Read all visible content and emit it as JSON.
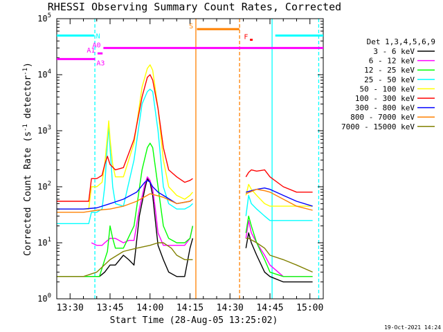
{
  "chart_data": {
    "type": "line",
    "title": "RHESSI Observing Summary Count Rates, Corrected",
    "xlabel": "Start Time (28-Aug-05 13:25:02)",
    "ylabel": "Corrected Count Rate (s",
    "ylabel_sup": "-1",
    "ylabel_tail": " detector",
    "ylabel_end": ")",
    "footer": "19-Oct-2021 14:24",
    "yscale": "log",
    "ylim": [
      1,
      100000
    ],
    "xlim_minutes": [
      0,
      100
    ],
    "x_unit": "minutes after 13:25:02",
    "x_ticks": [
      {
        "label": "13:30",
        "min": 5
      },
      {
        "label": "13:45",
        "min": 20
      },
      {
        "label": "14:00",
        "min": 35
      },
      {
        "label": "14:15",
        "min": 50
      },
      {
        "label": "14:30",
        "min": 65
      },
      {
        "label": "14:45",
        "min": 80
      },
      {
        "label": "15:00",
        "min": 95
      }
    ],
    "y_ticks": [
      {
        "base": "10",
        "exp": "0",
        "value": 1
      },
      {
        "base": "10",
        "exp": "1",
        "value": 10
      },
      {
        "base": "10",
        "exp": "2",
        "value": 100
      },
      {
        "base": "10",
        "exp": "3",
        "value": 1000
      },
      {
        "base": "10",
        "exp": "4",
        "value": 10000
      },
      {
        "base": "10",
        "exp": "5",
        "value": 100000
      }
    ],
    "legend_title": "Det 1,3,4,5,6,9",
    "legend_placement": "right",
    "series": [
      {
        "name": "3 - 6 keV",
        "color": "#000000",
        "x": [
          0,
          16,
          18,
          20,
          22,
          25,
          27,
          29,
          31,
          33,
          34,
          35,
          36,
          37,
          38,
          40,
          42,
          45,
          48,
          50,
          51,
          53.5,
          58,
          62,
          64,
          70,
          71,
          72,
          73,
          75,
          78,
          80,
          85,
          90,
          96
        ],
        "y": [
          2.5,
          2.5,
          3,
          4,
          4,
          6,
          5,
          4,
          30,
          90,
          140,
          120,
          70,
          25,
          9,
          5,
          3,
          2.5,
          2.5,
          8,
          12,
          null,
          null,
          null,
          null,
          null,
          8,
          15,
          10,
          6,
          3,
          2.5,
          2,
          2,
          2
        ]
      },
      {
        "name": "6 - 12 keV",
        "color": "#ff00ff",
        "x": [
          0,
          12,
          13,
          15,
          17,
          18,
          20,
          22,
          25,
          27,
          29,
          31,
          33,
          34,
          35,
          36,
          37,
          38,
          40,
          42,
          45,
          48,
          50,
          51,
          53.5,
          58,
          62,
          64,
          70,
          71,
          72,
          73,
          75,
          78,
          80,
          85,
          90,
          96
        ],
        "y": [
          null,
          null,
          10,
          9,
          9,
          10,
          12,
          12,
          10,
          11,
          11,
          40,
          110,
          150,
          130,
          90,
          40,
          15,
          9,
          9,
          9,
          9,
          12,
          20,
          null,
          null,
          null,
          null,
          null,
          12,
          25,
          15,
          10,
          6,
          4,
          2.5,
          2.5,
          2.5
        ]
      },
      {
        "name": "12 - 25 keV",
        "color": "#00ff00",
        "x": [
          0,
          16,
          18,
          19,
          20,
          21,
          22,
          25,
          29,
          32,
          34,
          35,
          36,
          38,
          40,
          42,
          45,
          48,
          50,
          51,
          53.5,
          58,
          62,
          64,
          70,
          71,
          72,
          73,
          75,
          78,
          80,
          85,
          90,
          96
        ],
        "y": [
          2.5,
          2.5,
          5,
          7,
          20,
          12,
          8,
          8,
          20,
          200,
          500,
          600,
          500,
          100,
          20,
          12,
          10,
          10,
          12,
          20,
          null,
          null,
          null,
          null,
          null,
          15,
          30,
          20,
          10,
          5,
          3,
          2.5,
          2.5,
          2.5
        ]
      },
      {
        "name": "25 - 50 keV",
        "color": "#00ffff",
        "x": [
          0,
          12,
          13,
          15,
          17,
          18,
          19,
          19.5,
          20,
          21,
          22,
          25,
          29,
          32,
          34,
          35,
          36,
          38,
          40,
          42,
          45,
          48,
          50,
          51,
          53.5,
          58,
          62,
          64,
          70,
          71,
          72,
          73,
          75,
          78,
          80,
          85,
          90,
          96
        ],
        "y": [
          22,
          22,
          35,
          35,
          40,
          100,
          600,
          1200,
          500,
          100,
          50,
          45,
          300,
          3000,
          5000,
          5500,
          5000,
          1000,
          100,
          50,
          40,
          40,
          45,
          50,
          null,
          null,
          null,
          null,
          null,
          30,
          70,
          50,
          40,
          30,
          25,
          25,
          25,
          25
        ]
      },
      {
        "name": "50 - 100 keV",
        "color": "#ffff00",
        "x": [
          0,
          12,
          13,
          15,
          17,
          18,
          19,
          19.5,
          20,
          21,
          22,
          25,
          29,
          32,
          34,
          35,
          36,
          38,
          40,
          42,
          45,
          48,
          50,
          51,
          53.5,
          58,
          62,
          64,
          70,
          71,
          72,
          73,
          75,
          78,
          80,
          85,
          90,
          96
        ],
        "y": [
          40,
          40,
          100,
          100,
          120,
          250,
          800,
          1500,
          700,
          250,
          150,
          150,
          600,
          6000,
          13000,
          15000,
          12000,
          2500,
          300,
          100,
          70,
          60,
          70,
          80,
          null,
          null,
          null,
          null,
          null,
          70,
          110,
          90,
          70,
          50,
          45,
          45,
          45,
          45
        ]
      },
      {
        "name": "100 - 300 keV",
        "color": "#ff0000",
        "x": [
          0,
          12,
          13,
          15,
          17,
          18,
          19,
          20,
          22,
          25,
          29,
          32,
          34,
          35,
          36,
          38,
          40,
          42,
          45,
          48,
          50,
          51,
          53.5,
          58,
          62,
          64,
          70,
          71,
          72,
          73,
          75,
          78,
          80,
          85,
          90,
          96
        ],
        "y": [
          55,
          55,
          140,
          140,
          160,
          250,
          350,
          250,
          200,
          220,
          700,
          4000,
          9000,
          10000,
          8000,
          2500,
          500,
          200,
          150,
          120,
          130,
          140,
          null,
          null,
          null,
          null,
          null,
          150,
          180,
          200,
          190,
          200,
          150,
          100,
          80,
          80
        ]
      },
      {
        "name": "300 - 800 keV",
        "color": "#0000ff",
        "x": [
          0,
          10,
          15,
          20,
          25,
          30,
          33,
          34,
          35,
          36,
          38,
          40,
          45,
          50,
          51,
          53.5,
          58,
          62,
          64,
          70,
          71,
          75,
          78,
          80,
          85,
          90,
          96
        ],
        "y": [
          40,
          40,
          42,
          50,
          60,
          80,
          120,
          130,
          120,
          100,
          80,
          70,
          50,
          55,
          60,
          null,
          null,
          null,
          null,
          null,
          80,
          90,
          95,
          90,
          70,
          55,
          45
        ]
      },
      {
        "name": "800 - 7000 keV",
        "color": "#ff8000",
        "x": [
          0,
          10,
          15,
          20,
          25,
          30,
          35,
          40,
          45,
          50,
          51,
          53.5,
          58,
          62,
          64,
          70,
          71,
          75,
          78,
          80,
          85,
          90,
          96
        ],
        "y": [
          35,
          35,
          38,
          40,
          45,
          55,
          75,
          65,
          50,
          55,
          60,
          null,
          null,
          null,
          null,
          null,
          75,
          90,
          85,
          80,
          60,
          45,
          38
        ]
      },
      {
        "name": "7000 - 15000 keV",
        "color": "#808000",
        "x": [
          0,
          10,
          15,
          20,
          25,
          30,
          35,
          38,
          40,
          43,
          45,
          48,
          50,
          51,
          53.5,
          58,
          62,
          64,
          70,
          71,
          72,
          75,
          78,
          80,
          85,
          90,
          96
        ],
        "y": [
          2.5,
          2.5,
          3,
          5,
          7,
          8,
          9,
          10,
          10,
          8,
          6,
          5,
          5,
          5,
          null,
          null,
          null,
          null,
          null,
          12,
          12,
          10,
          8,
          6,
          5,
          4,
          3
        ]
      }
    ],
    "bars": [
      {
        "label": "N",
        "color": "#00ffff",
        "y": 50000,
        "x_ranges": [
          [
            0,
            14
          ],
          [
            82,
            100
          ]
        ],
        "label_x": 14.7,
        "label_pos": "right"
      },
      {
        "label": "S",
        "color": "#ff8000",
        "y": 65000,
        "x_ranges": [
          [
            52.6,
            68.5
          ]
        ],
        "label_x": 51.2,
        "label_pos": "left"
      },
      {
        "label": "F",
        "color": "#ff0000",
        "y": 42000,
        "x_ranges": [
          [
            72.5,
            73.5
          ]
        ],
        "label_x": 71.8,
        "label_pos": "left"
      },
      {
        "label": "A0",
        "color": "#ff00ff",
        "y": 30000,
        "x_ranges": [
          [
            17.5,
            100
          ]
        ],
        "label_x": 16.5,
        "label_pos": "left"
      },
      {
        "label": "A1",
        "color": "#ff00ff",
        "y": 24000,
        "x_ranges": [
          [
            15.3,
            17.2
          ]
        ],
        "label_x": 14.4,
        "label_pos": "left"
      },
      {
        "label": "A3",
        "color": "#ff00ff",
        "y": 19000,
        "x_ranges": [
          [
            0,
            14.4
          ]
        ],
        "label_x": 14.9,
        "label_pos": "right-below"
      }
    ],
    "vlines": [
      {
        "x": 14.3,
        "color": "#00ffff",
        "style": "dashed"
      },
      {
        "x": 52.2,
        "color": "#ff8000",
        "style": "solid"
      },
      {
        "x": 68.6,
        "color": "#ff8000",
        "style": "dashed"
      },
      {
        "x": 80.8,
        "color": "#00ffff",
        "style": "solid"
      },
      {
        "x": 98.3,
        "color": "#00ffff",
        "style": "dashed"
      }
    ]
  }
}
